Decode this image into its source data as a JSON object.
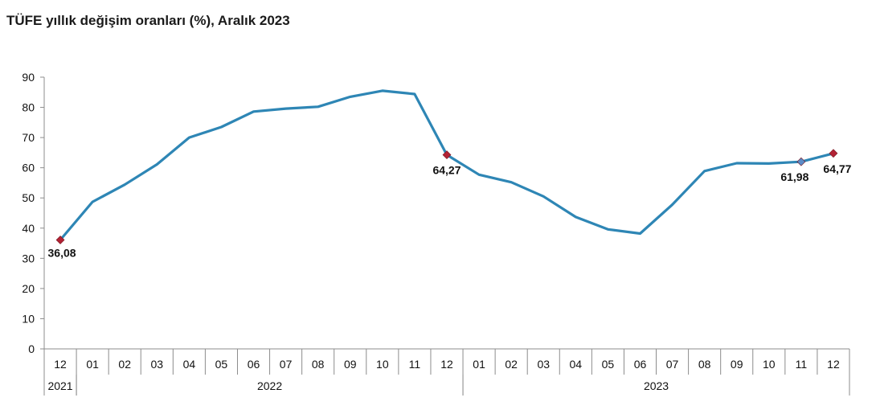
{
  "chart_data": {
    "type": "line",
    "title": "TÜFE yıllık değişim oranları (%), Aralık 2023",
    "xlabel": "",
    "ylabel": "",
    "ylim": [
      0,
      90
    ],
    "yticks": [
      0,
      10,
      20,
      30,
      40,
      50,
      60,
      70,
      80,
      90
    ],
    "grid": false,
    "categories": [
      "12",
      "01",
      "02",
      "03",
      "04",
      "05",
      "06",
      "07",
      "08",
      "09",
      "10",
      "11",
      "12",
      "01",
      "02",
      "03",
      "04",
      "05",
      "06",
      "07",
      "08",
      "09",
      "10",
      "11",
      "12"
    ],
    "year_groups": [
      {
        "label": "2021",
        "start": 0,
        "end": 0
      },
      {
        "label": "2022",
        "start": 1,
        "end": 12
      },
      {
        "label": "2023",
        "start": 13,
        "end": 24
      }
    ],
    "series": [
      {
        "values": [
          36.08,
          48.7,
          54.4,
          61.1,
          70.0,
          73.5,
          78.6,
          79.6,
          80.2,
          83.5,
          85.5,
          84.4,
          64.27,
          57.7,
          55.2,
          50.5,
          43.7,
          39.6,
          38.2,
          47.8,
          58.9,
          61.5,
          61.4,
          61.98,
          64.77
        ],
        "color": "#2e86b5"
      }
    ],
    "highlighted": [
      {
        "index": 0,
        "label": "36,08",
        "color": "#b22234"
      },
      {
        "index": 12,
        "label": "64,27",
        "color": "#b22234"
      },
      {
        "index": 23,
        "label": "61,98",
        "color": "#5b8cc8"
      },
      {
        "index": 24,
        "label": "64,77",
        "color": "#b22234"
      }
    ]
  }
}
